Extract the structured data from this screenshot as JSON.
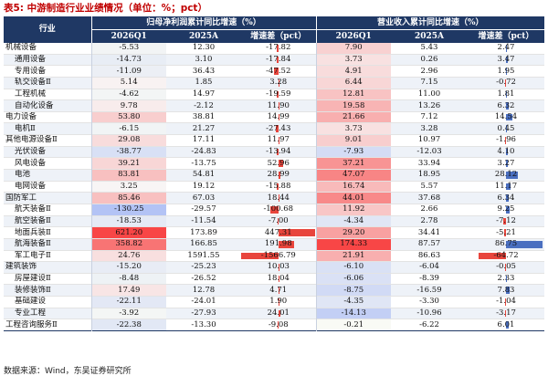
{
  "title": {
    "label": "表5:",
    "text": "中游制造行业业绩情况（单位：%；pct）"
  },
  "header": {
    "industry": "行业",
    "group_profit": "归母净利润累计同比增速（%）",
    "group_revenue": "营业收入累计同比增速（%）",
    "col_q1": "2026Q1",
    "col_a": "2025A",
    "col_diff": "增速差（pct）"
  },
  "rows": [
    {
      "name": "机械设备",
      "level": 1,
      "p1": "-5.53",
      "pa": "12.30",
      "pd": "-17.82",
      "r1": "7.90",
      "ra": "5.43",
      "rd": "2.47"
    },
    {
      "name": "通用设备",
      "level": 2,
      "p1": "-14.73",
      "pa": "3.10",
      "pd": "-17.84",
      "r1": "3.73",
      "ra": "0.26",
      "rd": "3.47"
    },
    {
      "name": "专用设备",
      "level": 2,
      "p1": "-11.09",
      "pa": "36.43",
      "pd": "-47.52",
      "r1": "4.91",
      "ra": "2.96",
      "rd": "1.95"
    },
    {
      "name": "轨交设备Ⅱ",
      "level": 2,
      "p1": "5.14",
      "pa": "1.85",
      "pd": "3.28",
      "r1": "6.44",
      "ra": "7.15",
      "rd": "-0.72"
    },
    {
      "name": "工程机械",
      "level": 2,
      "p1": "-4.62",
      "pa": "14.97",
      "pd": "-19.59",
      "r1": "12.81",
      "ra": "11.00",
      "rd": "1.81"
    },
    {
      "name": "自动化设备",
      "level": 2,
      "p1": "9.78",
      "pa": "-2.12",
      "pd": "11.90",
      "r1": "19.58",
      "ra": "13.26",
      "rd": "6.32"
    },
    {
      "name": "电力设备",
      "level": 1,
      "p1": "53.80",
      "pa": "38.81",
      "pd": "14.99",
      "r1": "21.66",
      "ra": "7.12",
      "rd": "14.54"
    },
    {
      "name": "电机Ⅱ",
      "level": 2,
      "p1": "-6.15",
      "pa": "21.27",
      "pd": "-27.43",
      "r1": "3.73",
      "ra": "3.28",
      "rd": "0.45"
    },
    {
      "name": "其他电源设备Ⅱ",
      "level": 1,
      "p1": "29.08",
      "pa": "17.11",
      "pd": "11.97",
      "r1": "9.01",
      "ra": "10.97",
      "rd": "-1.96"
    },
    {
      "name": "光伏设备",
      "level": 2,
      "p1": "-38.77",
      "pa": "-24.83",
      "pd": "-13.94",
      "r1": "-7.93",
      "ra": "-12.03",
      "rd": "4.10"
    },
    {
      "name": "风电设备",
      "level": 2,
      "p1": "39.21",
      "pa": "-13.75",
      "pd": "52.96",
      "r1": "37.21",
      "ra": "33.94",
      "rd": "3.27"
    },
    {
      "name": "电池",
      "level": 2,
      "p1": "83.81",
      "pa": "54.81",
      "pd": "28.99",
      "r1": "47.07",
      "ra": "18.95",
      "rd": "28.12"
    },
    {
      "name": "电网设备",
      "level": 2,
      "p1": "3.25",
      "pa": "19.12",
      "pd": "-15.88",
      "r1": "16.74",
      "ra": "5.57",
      "rd": "11.17"
    },
    {
      "name": "国防军工",
      "level": 1,
      "p1": "85.46",
      "pa": "67.03",
      "pd": "18.44",
      "r1": "44.01",
      "ra": "37.68",
      "rd": "6.34"
    },
    {
      "name": "航天装备Ⅱ",
      "level": 2,
      "p1": "-130.25",
      "pa": "-29.57",
      "pd": "-100.68",
      "r1": "11.92",
      "ra": "2.66",
      "rd": "9.25"
    },
    {
      "name": "航空装备Ⅱ",
      "level": 2,
      "p1": "-18.53",
      "pa": "-11.54",
      "pd": "-7.00",
      "r1": "-4.34",
      "ra": "2.78",
      "rd": "-7.12"
    },
    {
      "name": "地面兵装Ⅱ",
      "level": 2,
      "p1": "621.20",
      "pa": "173.89",
      "pd": "447.31",
      "r1": "29.20",
      "ra": "34.41",
      "rd": "-5.21"
    },
    {
      "name": "航海装备Ⅱ",
      "level": 2,
      "p1": "358.82",
      "pa": "166.85",
      "pd": "191.98",
      "r1": "174.33",
      "ra": "87.57",
      "rd": "86.75"
    },
    {
      "name": "军工电子Ⅱ",
      "level": 2,
      "p1": "24.76",
      "pa": "1591.55",
      "pd": "-1566.79",
      "r1": "21.91",
      "ra": "86.63",
      "rd": "-64.72"
    },
    {
      "name": "建筑装饰",
      "level": 1,
      "p1": "-15.20",
      "pa": "-25.23",
      "pd": "10.03",
      "r1": "-6.10",
      "ra": "-6.04",
      "rd": "-0.05"
    },
    {
      "name": "房屋建设Ⅱ",
      "level": 2,
      "p1": "-8.48",
      "pa": "-26.52",
      "pd": "18.04",
      "r1": "-6.06",
      "ra": "-8.39",
      "rd": "2.33"
    },
    {
      "name": "装修装饰Ⅱ",
      "level": 2,
      "p1": "17.49",
      "pa": "12.78",
      "pd": "4.71",
      "r1": "-8.75",
      "ra": "-16.59",
      "rd": "7.83"
    },
    {
      "name": "基础建设",
      "level": 2,
      "p1": "-22.11",
      "pa": "-24.01",
      "pd": "1.90",
      "r1": "-4.35",
      "ra": "-3.30",
      "rd": "-1.04"
    },
    {
      "name": "专业工程",
      "level": 2,
      "p1": "-3.92",
      "pa": "-27.93",
      "pd": "24.01",
      "r1": "-14.13",
      "ra": "-10.96",
      "rd": "-3.17"
    },
    {
      "name": "工程咨询服务Ⅱ",
      "level": 1,
      "p1": "-22.38",
      "pa": "-13.30",
      "pd": "-9.08",
      "r1": "-0.21",
      "ra": "-6.22",
      "rd": "6.01"
    }
  ],
  "source": "数据来源：Wind，东吴证券研究所"
}
